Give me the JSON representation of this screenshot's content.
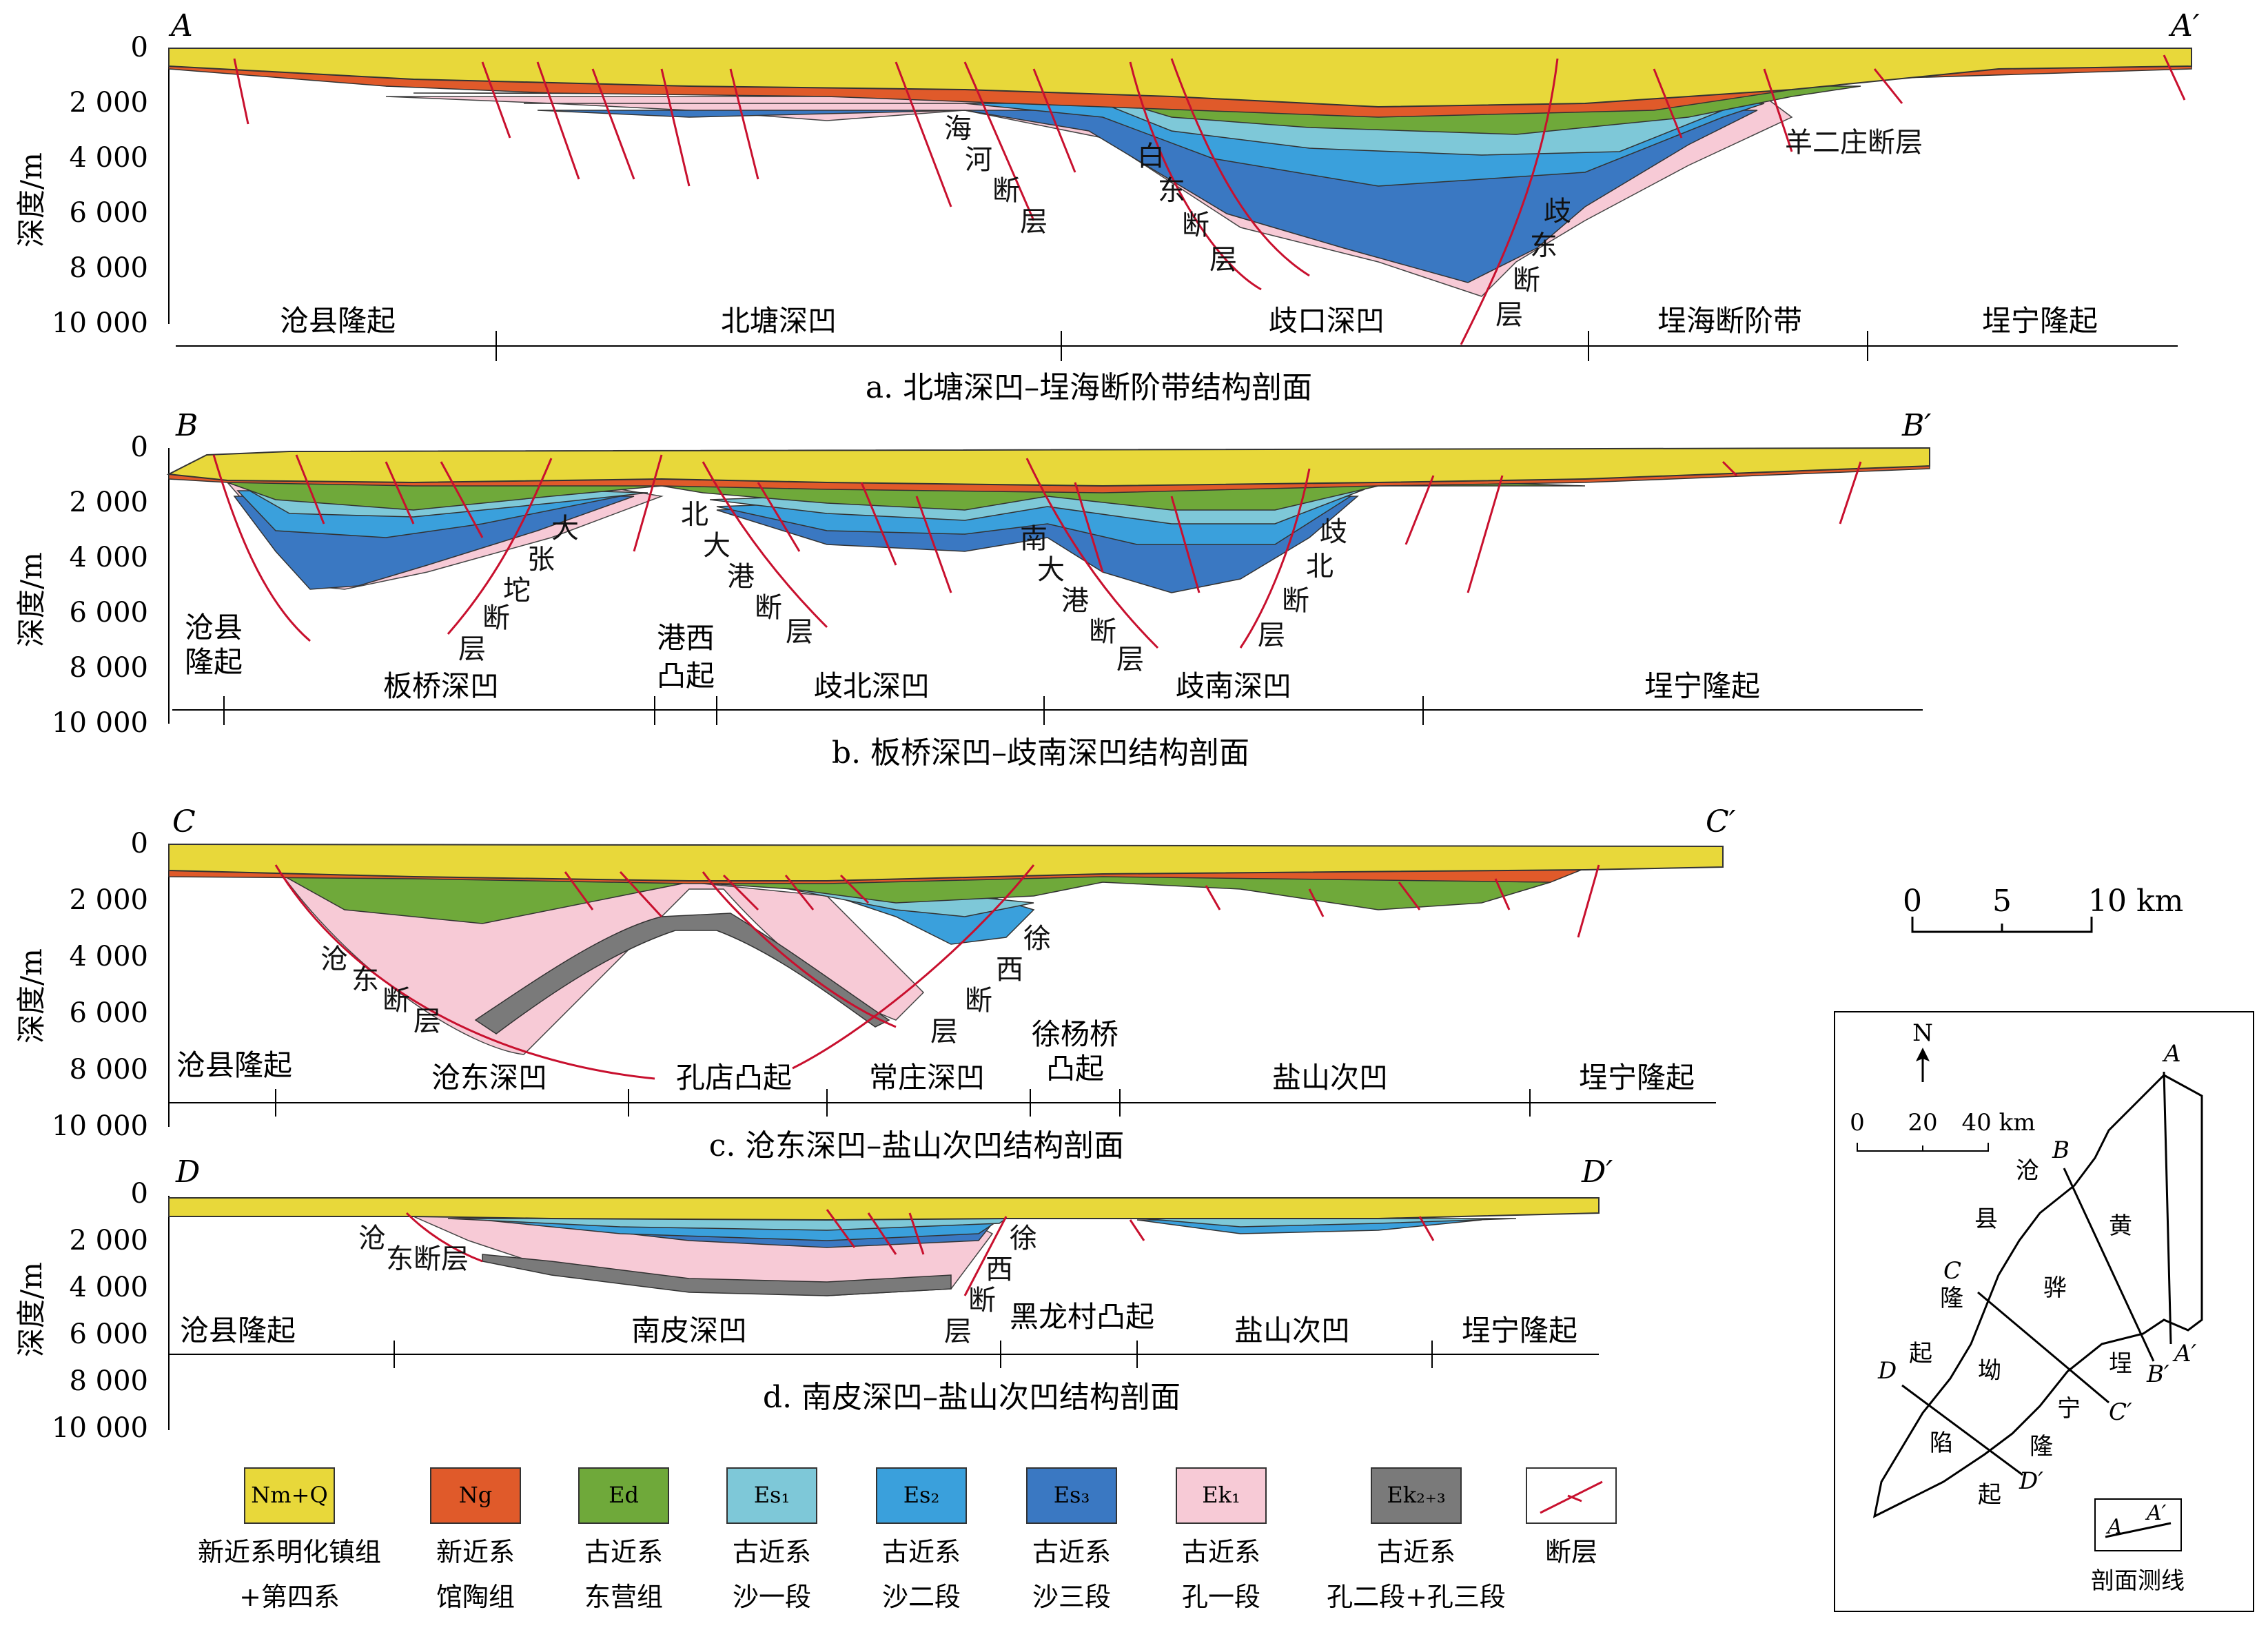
{
  "figure": {
    "y_axis_label": "深度/m",
    "depth_ticks": [
      "0",
      "2 000",
      "4 000",
      "6 000",
      "8 000",
      "10 000"
    ]
  },
  "sections": [
    {
      "id": "a",
      "start": "A",
      "end": "A′",
      "caption": "a. 北塘深凹–埕海断阶带结构剖面",
      "units": [
        "沧县隆起",
        "北塘深凹",
        "歧口深凹",
        "埕海断阶带",
        "埕宁隆起"
      ],
      "faults": [
        "海河断层",
        "白东断层",
        "歧东断层",
        "羊二庄断层"
      ]
    },
    {
      "id": "b",
      "start": "B",
      "end": "B′",
      "caption": "b. 板桥深凹–歧南深凹结构剖面",
      "units": [
        "沧县隆起",
        "板桥深凹",
        "港西凸起",
        "歧北深凹",
        "歧南深凹",
        "埕宁隆起"
      ],
      "faults": [
        "大张坨断层",
        "北大港断层",
        "南大港断层",
        "歧北断层"
      ]
    },
    {
      "id": "c",
      "start": "C",
      "end": "C′",
      "caption": "c. 沧东深凹–盐山次凹结构剖面",
      "units": [
        "沧县隆起",
        "沧东深凹",
        "孔店凸起",
        "常庄深凹",
        "徐杨桥凸起",
        "盐山次凹",
        "埕宁隆起"
      ],
      "faults": [
        "沧东断层",
        "徐西断层"
      ]
    },
    {
      "id": "d",
      "start": "D",
      "end": "D′",
      "caption": "d. 南皮深凹–盐山次凹结构剖面",
      "units": [
        "沧县隆起",
        "南皮深凹",
        "黑龙村凸起",
        "盐山次凹",
        "埕宁隆起"
      ],
      "faults": [
        "沧东断层",
        "徐西断层"
      ]
    }
  ],
  "scale_bar": {
    "ticks": [
      "0",
      "5",
      "10 km"
    ]
  },
  "legend": [
    {
      "code": "Nm+Q",
      "desc1": "新近系明化镇组",
      "desc2": "+第四系",
      "color": "#e8d83a"
    },
    {
      "code": "Ng",
      "desc1": "新近系",
      "desc2": "馆陶组",
      "color": "#e05a2a"
    },
    {
      "code": "Ed",
      "desc1": "古近系",
      "desc2": "东营组",
      "color": "#6fa93a"
    },
    {
      "code": "Es₁",
      "desc1": "古近系",
      "desc2": "沙一段",
      "color": "#7ec8d8"
    },
    {
      "code": "Es₂",
      "desc1": "古近系",
      "desc2": "沙二段",
      "color": "#3aa0dc"
    },
    {
      "code": "Es₃",
      "desc1": "古近系",
      "desc2": "沙三段",
      "color": "#3a78c2"
    },
    {
      "code": "Ek₁",
      "desc1": "古近系",
      "desc2": "孔一段",
      "color": "#f7cad6"
    },
    {
      "code": "Ek₂₊₃",
      "desc1": "古近系",
      "desc2": "孔二段+孔三段",
      "color": "#7a7a7a"
    },
    {
      "code": "",
      "desc1": "断层",
      "desc2": "",
      "color": "#c8102e"
    }
  ],
  "inset": {
    "north": "N",
    "scale_ticks": [
      "0",
      "20",
      "40 km"
    ],
    "labels": [
      "沧",
      "县",
      "隆",
      "起",
      "黄",
      "骅",
      "坳",
      "陷",
      "埕",
      "宁",
      "隆",
      "起"
    ],
    "line_points": [
      "A",
      "A′",
      "B",
      "B′",
      "C",
      "C′",
      "D",
      "D′"
    ],
    "legend_label": "剖面测线",
    "legend_a": "A",
    "legend_a2": "A′"
  }
}
